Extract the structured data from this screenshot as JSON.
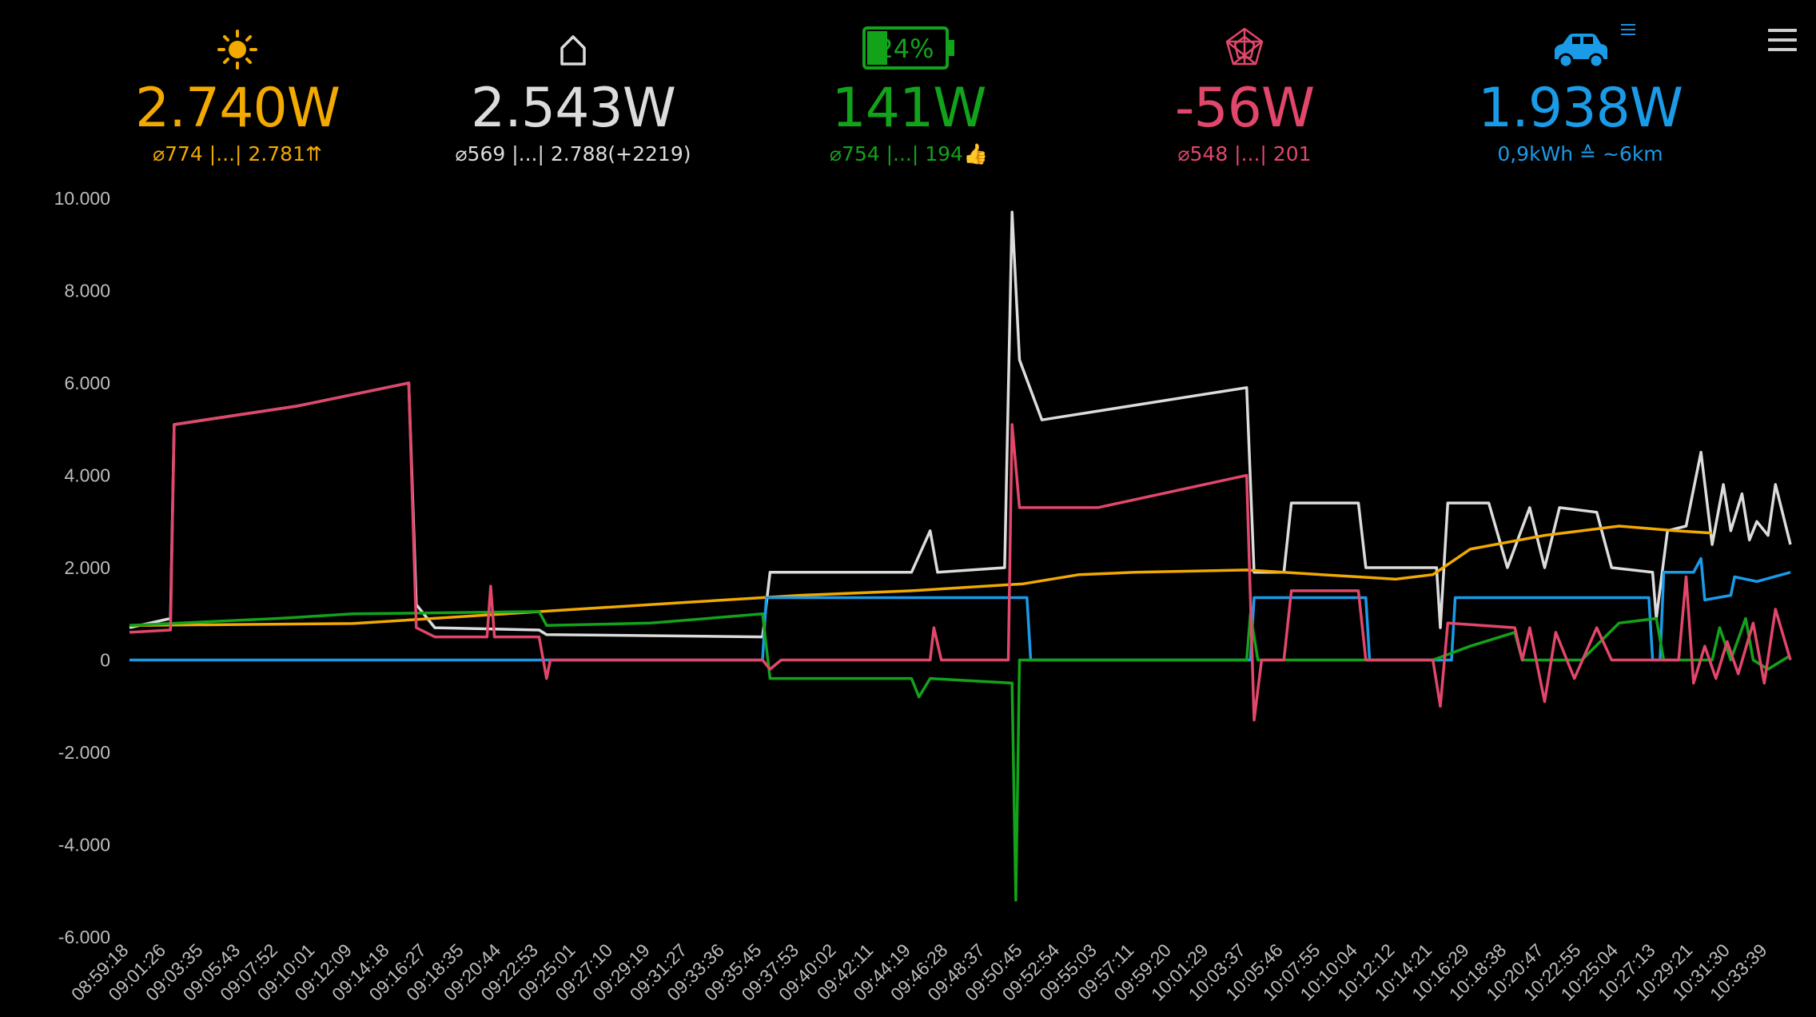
{
  "tiles": {
    "solar": {
      "icon": "sun-icon",
      "value": "2.740W",
      "sub": "⌀774 |...| 2.781⇈",
      "color": "#f2a900"
    },
    "house": {
      "icon": "house-icon",
      "value": "2.543W",
      "sub": "⌀569 |...| 2.788(+2219)",
      "color": "#dcdcdc"
    },
    "battery": {
      "icon": "battery-icon",
      "percent": "24%",
      "value": "141W",
      "sub": "⌀754 |...| 194👍",
      "color": "#12a31b"
    },
    "grid": {
      "icon": "grid-mast-icon",
      "value": "-56W",
      "sub": "⌀548 |...| 201",
      "color": "#e2476b"
    },
    "car": {
      "icon": "car-icon",
      "value": "1.938W",
      "sub": "0,9kWh ≙ ~6km",
      "color": "#1a9be8"
    }
  },
  "chart_data": {
    "type": "line",
    "ylim": [
      -6000,
      10000
    ],
    "yticks": [
      "10.000",
      "8.000",
      "6.000",
      "4.000",
      "2.000",
      "0",
      "-2.000",
      "-4.000",
      "-6.000"
    ],
    "ytick_values": [
      10000,
      8000,
      6000,
      4000,
      2000,
      0,
      -2000,
      -4000,
      -6000
    ],
    "categories": [
      "08:59:18",
      "09:01:26",
      "09:03:35",
      "09:05:43",
      "09:07:52",
      "09:10:01",
      "09:12:09",
      "09:14:18",
      "09:16:27",
      "09:18:35",
      "09:20:44",
      "09:22:53",
      "09:25:01",
      "09:27:10",
      "09:29:19",
      "09:31:27",
      "09:33:36",
      "09:35:45",
      "09:37:53",
      "09:40:02",
      "09:42:11",
      "09:44:19",
      "09:46:28",
      "09:48:37",
      "09:50:45",
      "09:52:54",
      "09:55:03",
      "09:57:11",
      "09:59:20",
      "10:01:29",
      "10:03:37",
      "10:05:46",
      "10:07:55",
      "10:10:04",
      "10:12:12",
      "10:14:21",
      "10:16:29",
      "10:18:38",
      "10:20:47",
      "10:22:55",
      "10:25:04",
      "10:27:13",
      "10:29:21",
      "10:31:30",
      "10:33:39"
    ],
    "grid": false,
    "legend": "none",
    "series": [
      {
        "key": "solar",
        "color": "#f2a900",
        "points": [
          [
            0,
            750
          ],
          [
            6,
            790
          ],
          [
            12,
            1100
          ],
          [
            15,
            1250
          ],
          [
            18,
            1400
          ],
          [
            21,
            1500
          ],
          [
            24,
            1650
          ],
          [
            25.5,
            1850
          ],
          [
            27,
            1900
          ],
          [
            30,
            1950
          ],
          [
            32,
            1850
          ],
          [
            33,
            1800
          ],
          [
            34,
            1750
          ],
          [
            35,
            1850
          ],
          [
            36,
            2400
          ],
          [
            38,
            2700
          ],
          [
            40,
            2900
          ],
          [
            41.5,
            2800
          ],
          [
            42.5,
            2750
          ]
        ]
      },
      {
        "key": "house",
        "color": "#dcdcdc",
        "points": [
          [
            0,
            700
          ],
          [
            1.1,
            900
          ],
          [
            1.2,
            5100
          ],
          [
            4.5,
            5500
          ],
          [
            7.5,
            6000
          ],
          [
            7.7,
            1200
          ],
          [
            8.2,
            700
          ],
          [
            11,
            650
          ],
          [
            11.2,
            550
          ],
          [
            17,
            500
          ],
          [
            17.2,
            1900
          ],
          [
            21,
            1900
          ],
          [
            21.5,
            2800
          ],
          [
            21.7,
            1900
          ],
          [
            23.5,
            2000
          ],
          [
            23.7,
            9700
          ],
          [
            23.9,
            6500
          ],
          [
            24.5,
            5200
          ],
          [
            30,
            5900
          ],
          [
            30.2,
            1900
          ],
          [
            31,
            1900
          ],
          [
            31.2,
            3400
          ],
          [
            33,
            3400
          ],
          [
            33.2,
            2000
          ],
          [
            35.1,
            2000
          ],
          [
            35.2,
            700
          ],
          [
            35.4,
            3400
          ],
          [
            36.5,
            3400
          ],
          [
            37,
            2000
          ],
          [
            37.6,
            3300
          ],
          [
            38,
            2000
          ],
          [
            38.4,
            3300
          ],
          [
            39.4,
            3200
          ],
          [
            39.8,
            2000
          ],
          [
            40.9,
            1900
          ],
          [
            41.0,
            900
          ],
          [
            41.3,
            2800
          ],
          [
            41.8,
            2900
          ],
          [
            42.2,
            4500
          ],
          [
            42.5,
            2500
          ],
          [
            42.8,
            3800
          ],
          [
            43.0,
            2800
          ],
          [
            43.3,
            3600
          ],
          [
            43.5,
            2600
          ],
          [
            43.7,
            3000
          ],
          [
            44,
            2700
          ],
          [
            44.2,
            3800
          ],
          [
            44.6,
            2500
          ]
        ]
      },
      {
        "key": "battery",
        "color": "#12a31b",
        "points": [
          [
            0,
            750
          ],
          [
            4,
            900
          ],
          [
            6,
            1000
          ],
          [
            11,
            1050
          ],
          [
            11.2,
            750
          ],
          [
            14,
            800
          ],
          [
            17,
            1000
          ],
          [
            17.2,
            -400
          ],
          [
            21,
            -400
          ],
          [
            21.2,
            -800
          ],
          [
            21.5,
            -400
          ],
          [
            23.7,
            -500
          ],
          [
            23.8,
            -5200
          ],
          [
            23.9,
            0
          ],
          [
            30,
            0
          ],
          [
            30.1,
            1000
          ],
          [
            30.3,
            0
          ],
          [
            35,
            0
          ],
          [
            36,
            300
          ],
          [
            37.2,
            600
          ],
          [
            37.4,
            0
          ],
          [
            39,
            0
          ],
          [
            40,
            800
          ],
          [
            41,
            900
          ],
          [
            41.2,
            0
          ],
          [
            42.5,
            0
          ],
          [
            42.7,
            700
          ],
          [
            43,
            0
          ],
          [
            43.4,
            900
          ],
          [
            43.6,
            0
          ],
          [
            44,
            -200
          ],
          [
            44.6,
            100
          ]
        ]
      },
      {
        "key": "grid",
        "color": "#e2476b",
        "points": [
          [
            0,
            600
          ],
          [
            1.1,
            650
          ],
          [
            1.2,
            5100
          ],
          [
            4.5,
            5500
          ],
          [
            7.5,
            6000
          ],
          [
            7.7,
            700
          ],
          [
            8.2,
            500
          ],
          [
            9.6,
            500
          ],
          [
            9.7,
            1600
          ],
          [
            9.8,
            500
          ],
          [
            11,
            500
          ],
          [
            11.2,
            -400
          ],
          [
            11.3,
            0
          ],
          [
            17,
            0
          ],
          [
            17.2,
            -200
          ],
          [
            17.5,
            0
          ],
          [
            21.5,
            0
          ],
          [
            21.6,
            700
          ],
          [
            21.8,
            0
          ],
          [
            23.6,
            0
          ],
          [
            23.7,
            5100
          ],
          [
            23.9,
            3300
          ],
          [
            26,
            3300
          ],
          [
            30,
            4000
          ],
          [
            30.2,
            -1300
          ],
          [
            30.4,
            0
          ],
          [
            31,
            0
          ],
          [
            31.2,
            1500
          ],
          [
            33,
            1500
          ],
          [
            33.2,
            0
          ],
          [
            35,
            0
          ],
          [
            35.2,
            -1000
          ],
          [
            35.4,
            800
          ],
          [
            37.2,
            700
          ],
          [
            37.4,
            0
          ],
          [
            37.6,
            700
          ],
          [
            38,
            -900
          ],
          [
            38.3,
            600
          ],
          [
            38.8,
            -400
          ],
          [
            39.4,
            700
          ],
          [
            39.8,
            0
          ],
          [
            41.6,
            0
          ],
          [
            41.8,
            1800
          ],
          [
            42,
            -500
          ],
          [
            42.3,
            300
          ],
          [
            42.6,
            -400
          ],
          [
            42.9,
            400
          ],
          [
            43.2,
            -300
          ],
          [
            43.6,
            800
          ],
          [
            43.9,
            -500
          ],
          [
            44.2,
            1100
          ],
          [
            44.6,
            0
          ]
        ]
      },
      {
        "key": "car",
        "color": "#1a9be8",
        "points": [
          [
            0,
            0
          ],
          [
            17,
            0
          ],
          [
            17.1,
            1350
          ],
          [
            24.1,
            1350
          ],
          [
            24.2,
            0
          ],
          [
            30.1,
            0
          ],
          [
            30.2,
            1350
          ],
          [
            33.2,
            1350
          ],
          [
            33.3,
            0
          ],
          [
            35.5,
            0
          ],
          [
            35.6,
            1350
          ],
          [
            40.8,
            1350
          ],
          [
            40.9,
            0
          ],
          [
            41.1,
            0
          ],
          [
            41.2,
            1900
          ],
          [
            42,
            1900
          ],
          [
            42.2,
            2200
          ],
          [
            42.3,
            1300
          ],
          [
            43,
            1400
          ],
          [
            43.1,
            1800
          ],
          [
            43.7,
            1700
          ],
          [
            44.6,
            1900
          ]
        ]
      }
    ]
  }
}
